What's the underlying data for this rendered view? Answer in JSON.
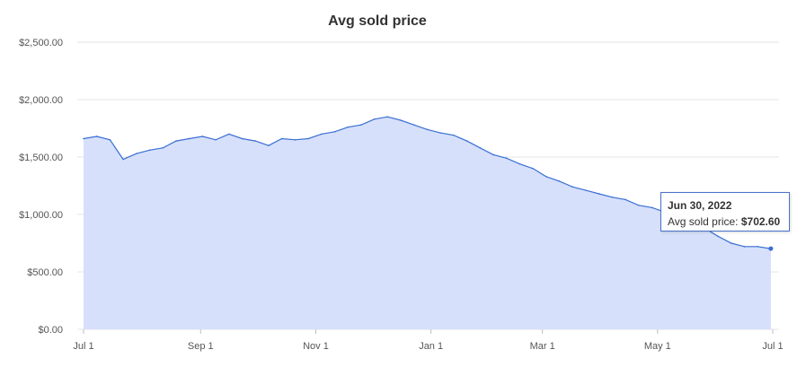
{
  "chart_data": {
    "type": "area",
    "title": "Avg sold price",
    "xlabel": "",
    "ylabel": "",
    "x_ticks": [
      "Jul 1",
      "Sep 1",
      "Nov 1",
      "Jan 1",
      "Mar 1",
      "May 1",
      "Jul 1"
    ],
    "y_ticks": [
      "$0.00",
      "$500.00",
      "$1,000.00",
      "$1,500.00",
      "$2,000.00",
      "$2,500.00"
    ],
    "ylim": [
      0,
      2500
    ],
    "xlim": [
      "2021-07-01",
      "2022-07-01"
    ],
    "grid": true,
    "colors": {
      "line": "#3b6fd4",
      "fill": "#d6e0fa",
      "grid": "#e6e6e6"
    },
    "series": [
      {
        "x": [
          "2021-07-01",
          "2021-07-08",
          "2021-07-15",
          "2021-07-22",
          "2021-07-29",
          "2021-08-05",
          "2021-08-12",
          "2021-08-19",
          "2021-08-26",
          "2021-09-02",
          "2021-09-09",
          "2021-09-16",
          "2021-09-23",
          "2021-09-30",
          "2021-10-07",
          "2021-10-14",
          "2021-10-21",
          "2021-10-28",
          "2021-11-04",
          "2021-11-11",
          "2021-11-18",
          "2021-11-25",
          "2021-12-02",
          "2021-12-09",
          "2021-12-16",
          "2021-12-23",
          "2021-12-30",
          "2022-01-06",
          "2022-01-13",
          "2022-01-20",
          "2022-01-27",
          "2022-02-03",
          "2022-02-10",
          "2022-02-17",
          "2022-02-24",
          "2022-03-03",
          "2022-03-10",
          "2022-03-17",
          "2022-03-24",
          "2022-03-31",
          "2022-04-07",
          "2022-04-14",
          "2022-04-21",
          "2022-04-28",
          "2022-05-05",
          "2022-05-12",
          "2022-05-19",
          "2022-05-26",
          "2022-06-02",
          "2022-06-09",
          "2022-06-16",
          "2022-06-23",
          "2022-06-30"
        ],
        "values": [
          1660,
          1680,
          1650,
          1480,
          1530,
          1560,
          1580,
          1640,
          1660,
          1680,
          1650,
          1700,
          1660,
          1640,
          1600,
          1660,
          1650,
          1660,
          1700,
          1720,
          1760,
          1780,
          1830,
          1850,
          1820,
          1780,
          1740,
          1710,
          1690,
          1640,
          1580,
          1520,
          1490,
          1440,
          1400,
          1330,
          1290,
          1240,
          1210,
          1180,
          1150,
          1130,
          1080,
          1060,
          1020,
          980,
          940,
          880,
          810,
          750,
          720,
          720,
          702.6
        ]
      }
    ],
    "tooltip": {
      "date": "Jun 30, 2022",
      "label": "Avg sold price:",
      "value": "$702.60"
    }
  }
}
